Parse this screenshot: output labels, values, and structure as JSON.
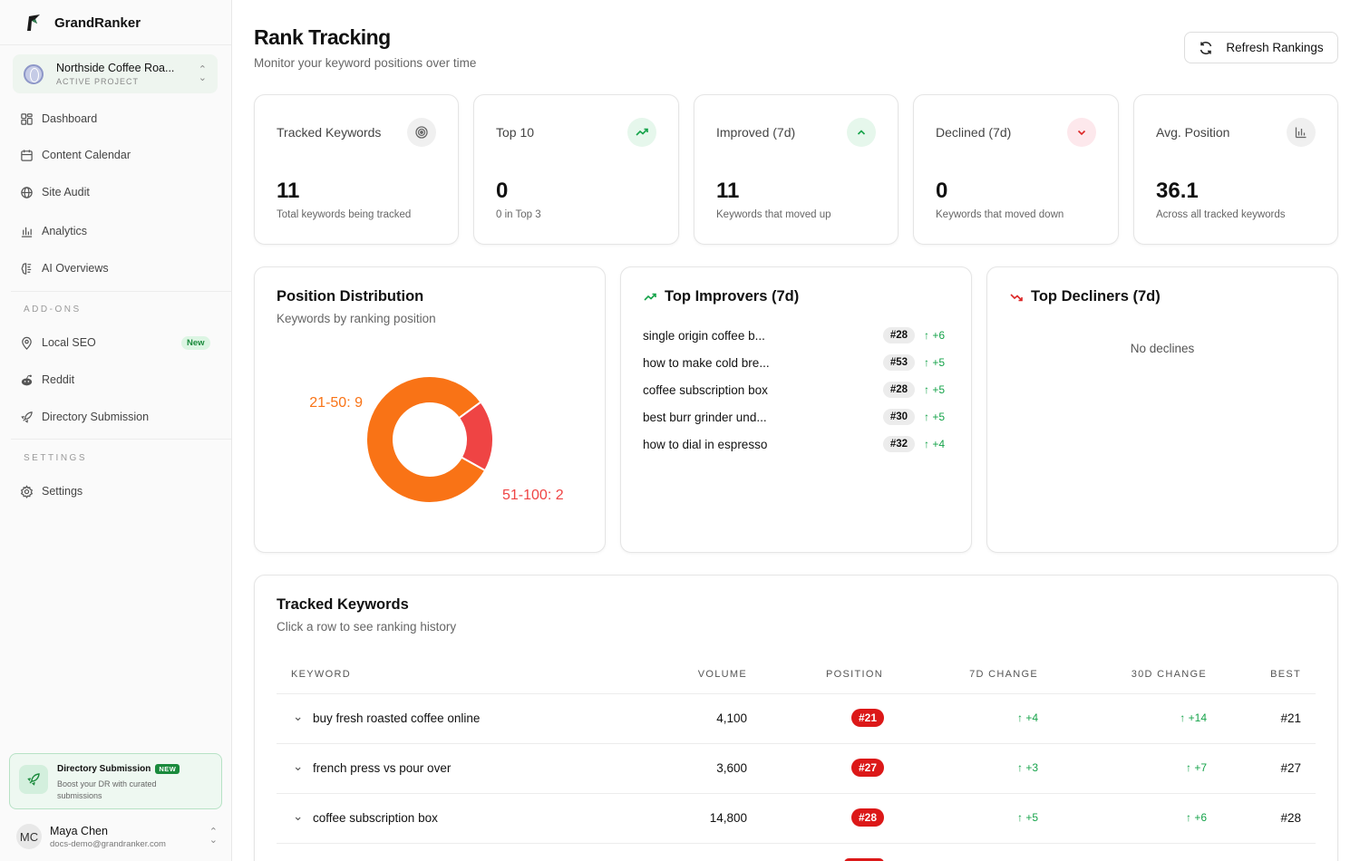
{
  "brand": {
    "name": "GrandRanker"
  },
  "project": {
    "name": "Northside Coffee Roa...",
    "label": "ACTIVE PROJECT"
  },
  "nav": {
    "dashboard": "Dashboard",
    "content_calendar": "Content Calendar",
    "site_audit": "Site Audit",
    "analytics": "Analytics",
    "ai_overviews": "AI Overviews",
    "addons_label": "ADD-ONS",
    "local_seo": "Local SEO",
    "local_seo_badge": "New",
    "reddit": "Reddit",
    "directory_submission": "Directory Submission",
    "settings_label": "SETTINGS",
    "settings": "Settings"
  },
  "promo": {
    "title": "Directory Submission",
    "badge": "NEW",
    "description": "Boost your DR with curated submissions"
  },
  "user": {
    "initials": "MC",
    "name": "Maya Chen",
    "email": "docs-demo@grandranker.com"
  },
  "header": {
    "title": "Rank Tracking",
    "subtitle": "Monitor your keyword positions over time",
    "refresh_label": "Refresh Rankings"
  },
  "stats": [
    {
      "label": "Tracked Keywords",
      "value": "11",
      "desc": "Total keywords being tracked",
      "icon": "target-icon"
    },
    {
      "label": "Top 10",
      "value": "0",
      "desc": "0 in Top 3",
      "icon": "trending-up-icon"
    },
    {
      "label": "Improved (7d)",
      "value": "11",
      "desc": "Keywords that moved up",
      "icon": "chevron-up-icon"
    },
    {
      "label": "Declined (7d)",
      "value": "0",
      "desc": "Keywords that moved down",
      "icon": "chevron-down-icon"
    },
    {
      "label": "Avg. Position",
      "value": "36.1",
      "desc": "Across all tracked keywords",
      "icon": "bar-chart-icon"
    }
  ],
  "distribution": {
    "title": "Position Distribution",
    "subtitle": "Keywords by ranking position"
  },
  "chart_data": {
    "type": "pie",
    "categories": [
      "21-50",
      "51-100"
    ],
    "values": [
      9,
      2
    ],
    "labels": [
      "21-50: 9",
      "51-100: 2"
    ],
    "colors": [
      "#f97316",
      "#ef4444"
    ]
  },
  "improvers": {
    "title": "Top Improvers (7d)",
    "rows": [
      {
        "keyword": "single origin coffee b...",
        "position": "#28",
        "change": "+6"
      },
      {
        "keyword": "how to make cold bre...",
        "position": "#53",
        "change": "+5"
      },
      {
        "keyword": "coffee subscription box",
        "position": "#28",
        "change": "+5"
      },
      {
        "keyword": "best burr grinder und...",
        "position": "#30",
        "change": "+5"
      },
      {
        "keyword": "how to dial in espresso",
        "position": "#32",
        "change": "+4"
      }
    ]
  },
  "decliners": {
    "title": "Top Decliners (7d)",
    "empty": "No declines"
  },
  "tracked": {
    "title": "Tracked Keywords",
    "subtitle": "Click a row to see ranking history",
    "columns": {
      "keyword": "KEYWORD",
      "volume": "VOLUME",
      "position": "POSITION",
      "change7": "7D CHANGE",
      "change30": "30D CHANGE",
      "best": "BEST"
    },
    "rows": [
      {
        "keyword": "buy fresh roasted coffee online",
        "volume": "4,100",
        "position": "#21",
        "change7": "+4",
        "change30": "+14",
        "best": "#21"
      },
      {
        "keyword": "french press vs pour over",
        "volume": "3,600",
        "position": "#27",
        "change7": "+3",
        "change30": "+7",
        "best": "#27"
      },
      {
        "keyword": "coffee subscription box",
        "volume": "14,800",
        "position": "#28",
        "change7": "+5",
        "change30": "+6",
        "best": "#28"
      }
    ]
  }
}
